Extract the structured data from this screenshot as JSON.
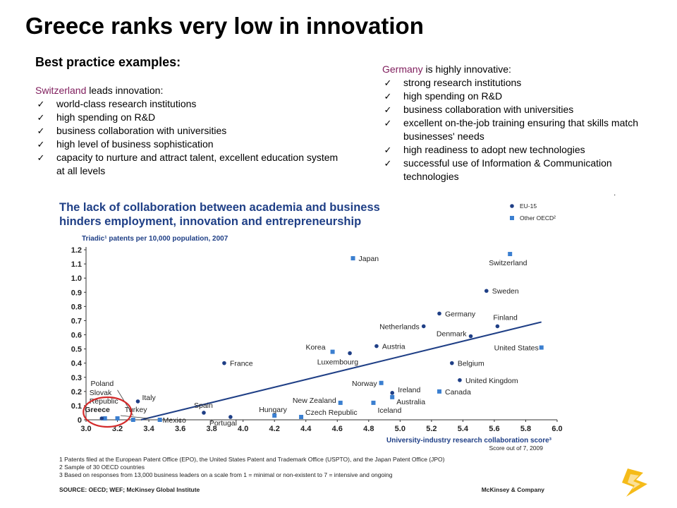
{
  "slide": {
    "title": "Greece ranks very low in innovation",
    "subtitle": "Best practice examples:",
    "switzerland": {
      "country": "Switzerland",
      "lead_rest": " leads innovation:",
      "items": [
        "world-class research institutions",
        "high spending on R&D",
        "business collaboration with universities",
        "high level of business sophistication",
        "capacity to nurture and attract talent, excellent education system at all levels"
      ]
    },
    "germany": {
      "country": "Germany",
      "lead_rest": " is highly innovative:",
      "items": [
        "strong research institutions",
        "high spending on R&D",
        "business collaboration with universities",
        "excellent on-the-job training ensuring that skills match businesses' needs",
        "high readiness to adopt new technologies",
        "successful use of Information & Communication technologies"
      ]
    },
    "check_mark": "✓",
    "stray_mark": "."
  },
  "chart_data": {
    "type": "scatter",
    "title_lines": [
      "The lack of collaboration between academia and business",
      "hinders employment, innovation and entrepreneurship"
    ],
    "ylabel": "Triadic¹ patents per 10,000 population, 2007",
    "xlabel": "University-industry research collaboration score³",
    "xlabel_sub": "Score out of 7, 2009",
    "xlim": [
      3.0,
      6.0
    ],
    "ylim": [
      0,
      1.2
    ],
    "xticks": [
      3.0,
      3.2,
      3.4,
      3.6,
      3.8,
      4.0,
      4.2,
      4.4,
      4.6,
      4.8,
      5.0,
      5.2,
      5.4,
      5.6,
      5.8,
      6.0
    ],
    "xtick_labels": [
      "3.0",
      "3.2",
      "3.4",
      "3.6",
      "3.8",
      "4.0",
      "4.2",
      "4.4",
      "4.6",
      "4.8",
      "5.0",
      "5.2",
      "5.4",
      "5.6",
      "5.8",
      "6.0"
    ],
    "yticks": [
      0,
      0.1,
      0.2,
      0.3,
      0.4,
      0.5,
      0.6,
      0.7,
      0.8,
      0.9,
      1.0,
      1.1,
      1.2
    ],
    "ytick_labels": [
      "0",
      "0.1",
      "0.2",
      "0.3",
      "0.4",
      "0.5",
      "0.6",
      "0.7",
      "0.8",
      "0.9",
      "1.0",
      "1.1",
      "1.2"
    ],
    "legend": [
      {
        "name": "EU-15",
        "marker": "circle",
        "color": "#1f3f86"
      },
      {
        "name": "Other OECD²",
        "marker": "square",
        "color": "#3b7fd0"
      }
    ],
    "trendline": {
      "x": [
        3.35,
        5.9
      ],
      "y": [
        0.0,
        0.69
      ]
    },
    "points": [
      {
        "label": "Switzerland",
        "x": 5.7,
        "y": 1.17,
        "group": "Other OECD²"
      },
      {
        "label": "Japan",
        "x": 4.7,
        "y": 1.14,
        "group": "Other OECD²"
      },
      {
        "label": "Sweden",
        "x": 5.55,
        "y": 0.91,
        "group": "EU-15"
      },
      {
        "label": "Germany",
        "x": 5.25,
        "y": 0.75,
        "group": "EU-15"
      },
      {
        "label": "Finland",
        "x": 5.62,
        "y": 0.66,
        "group": "EU-15"
      },
      {
        "label": "Netherlands",
        "x": 5.15,
        "y": 0.66,
        "group": "EU-15"
      },
      {
        "label": "Denmark",
        "x": 5.45,
        "y": 0.59,
        "group": "EU-15"
      },
      {
        "label": "United States",
        "x": 5.9,
        "y": 0.51,
        "group": "Other OECD²"
      },
      {
        "label": "Austria",
        "x": 4.85,
        "y": 0.52,
        "group": "EU-15"
      },
      {
        "label": "Korea",
        "x": 4.57,
        "y": 0.48,
        "group": "Other OECD²"
      },
      {
        "label": "Luxembourg",
        "x": 4.68,
        "y": 0.47,
        "group": "EU-15"
      },
      {
        "label": "France",
        "x": 3.88,
        "y": 0.4,
        "group": "EU-15"
      },
      {
        "label": "Belgium",
        "x": 5.33,
        "y": 0.4,
        "group": "EU-15"
      },
      {
        "label": "United Kingdom",
        "x": 5.38,
        "y": 0.28,
        "group": "EU-15"
      },
      {
        "label": "Norway",
        "x": 4.88,
        "y": 0.26,
        "group": "Other OECD²"
      },
      {
        "label": "Ireland",
        "x": 4.95,
        "y": 0.19,
        "group": "EU-15"
      },
      {
        "label": "Canada",
        "x": 5.25,
        "y": 0.2,
        "group": "Other OECD²"
      },
      {
        "label": "Australia",
        "x": 4.95,
        "y": 0.16,
        "group": "Other OECD²"
      },
      {
        "label": "Iceland",
        "x": 4.83,
        "y": 0.12,
        "group": "Other OECD²"
      },
      {
        "label": "New Zealand",
        "x": 4.62,
        "y": 0.12,
        "group": "Other OECD²"
      },
      {
        "label": "Italy",
        "x": 3.33,
        "y": 0.13,
        "group": "EU-15"
      },
      {
        "label": "Spain",
        "x": 3.75,
        "y": 0.05,
        "group": "EU-15"
      },
      {
        "label": "Portugal",
        "x": 3.92,
        "y": 0.02,
        "group": "EU-15"
      },
      {
        "label": "Hungary",
        "x": 4.2,
        "y": 0.03,
        "group": "Other OECD²"
      },
      {
        "label": "Czech Republic",
        "x": 4.37,
        "y": 0.02,
        "group": "Other OECD²"
      },
      {
        "label": "Mexico",
        "x": 3.47,
        "y": 0.0,
        "group": "Other OECD²"
      },
      {
        "label": "Turkey",
        "x": 3.3,
        "y": 0.0,
        "group": "Other OECD²"
      },
      {
        "label": "Poland",
        "x": 3.2,
        "y": 0.01,
        "group": "Other OECD²"
      },
      {
        "label": "Slovak Republic",
        "x": 3.12,
        "y": 0.01,
        "group": "Other OECD²"
      },
      {
        "label": "Greece",
        "x": 3.1,
        "y": 0.01,
        "group": "EU-15"
      }
    ],
    "highlight": "Greece",
    "footnotes": [
      "1 Patents filed at the European Patent Office (EPO), the United States Patent and Trademark Office (USPTO), and the Japan Patent Office (JPO)",
      "2 Sample of 30 OECD countries",
      "3 Based on responses from 13,000 business leaders on a scale from 1 = minimal or non-existent to 7 = intensive and ongoing"
    ],
    "source": "SOURCE: OECD; WEF; McKinsey Global Institute",
    "brand": "McKinsey & Company",
    "colors": {
      "title": "#1f3f86",
      "eu": "#1f3f86",
      "oecd": "#3b7fd0",
      "trend": "#1f3f86",
      "highlight_circle": "#d42a2a"
    }
  }
}
